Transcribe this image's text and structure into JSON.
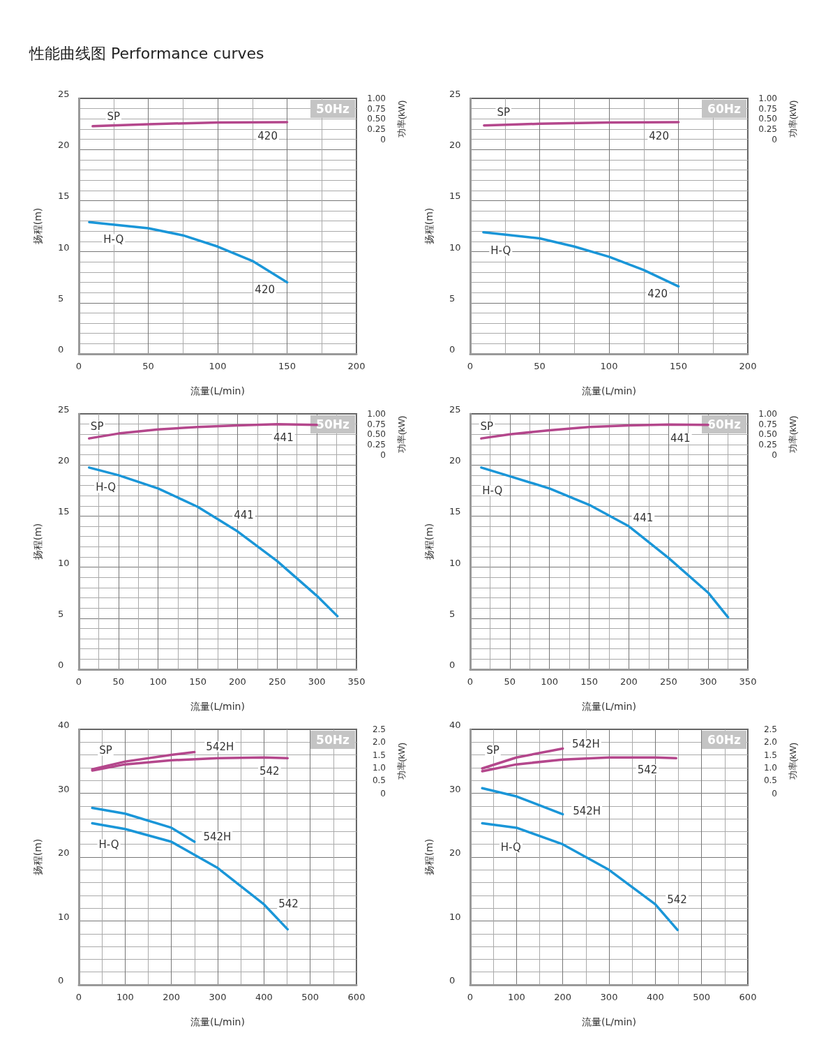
{
  "chart_data": [
    {
      "type": "line",
      "title": "性能曲线图 Performance curves",
      "xlabel": "流量(L/min)",
      "ylabel": "扬程(m)",
      "y2label": "功率(kW)",
      "xlim": [
        0,
        200
      ],
      "xticks": [
        0,
        50,
        100,
        150,
        200
      ],
      "ylim": [
        0,
        25
      ],
      "yticks": [
        0,
        5,
        10,
        15,
        20,
        25
      ],
      "y2lim": [
        -5.25,
        1
      ],
      "y2ticks": [
        0,
        0.25,
        {
          "value": 0.5,
          "label": "0.50"
        },
        0.75,
        {
          "value": 1,
          "label": "1.00"
        }
      ],
      "grid": true,
      "series": [
        {
          "color": "#1a96d8",
          "x": [
            7.5,
            50,
            75,
            100,
            125,
            150
          ],
          "values": [
            12.9,
            12.3,
            11.6,
            10.5,
            9.1,
            7.0
          ]
        },
        {
          "axis": "y2",
          "color": "#b4478c",
          "x": [
            10,
            50,
            100,
            150
          ],
          "values": [
            0.32,
            0.37,
            0.41,
            0.42
          ]
        }
      ],
      "annotations": [
        "50Hz",
        {
          "text": "SP",
          "x": 25,
          "y": 23.2
        },
        {
          "text": "H-Q",
          "x": 25,
          "y": 11.2
        },
        {
          "text": "420",
          "x": 136,
          "y": 21.3
        },
        {
          "text": "420",
          "x": 134,
          "y": 6.3
        }
      ]
    },
    {
      "type": "line",
      "xlabel": "流量(L/min)",
      "ylabel": "扬程(m)",
      "y2label": "功率(kW)",
      "xlim": [
        0,
        200
      ],
      "xticks": [
        0,
        50,
        100,
        150,
        200
      ],
      "ylim": [
        0,
        25
      ],
      "yticks": [
        0,
        5,
        10,
        15,
        20,
        25
      ],
      "y2lim": [
        -5.25,
        1
      ],
      "y2ticks": [
        0,
        0.25,
        {
          "value": 0.5,
          "label": "0.50"
        },
        0.75,
        {
          "value": 1,
          "label": "1.00"
        }
      ],
      "grid": true,
      "series": [
        {
          "color": "#1a96d8",
          "x": [
            9.5,
            50,
            75,
            100,
            125,
            150
          ],
          "values": [
            11.9,
            11.3,
            10.5,
            9.5,
            8.2,
            6.6
          ]
        },
        {
          "axis": "y2",
          "color": "#b4478c",
          "x": [
            10,
            50,
            100,
            150
          ],
          "values": [
            0.34,
            0.38,
            0.41,
            0.42
          ]
        }
      ],
      "annotations": [
        "60Hz",
        {
          "text": "SP",
          "x": 24,
          "y": 23.6
        },
        {
          "text": "H-Q",
          "x": 22,
          "y": 10.1
        },
        {
          "text": "420",
          "x": 136,
          "y": 21.3
        },
        {
          "text": "420",
          "x": 135,
          "y": 5.9
        }
      ]
    },
    {
      "type": "line",
      "xlabel": "流量(L/min)",
      "ylabel": "扬程(m)",
      "y2label": "功率(kW)",
      "xlim": [
        0,
        350
      ],
      "xticks": [
        0,
        50,
        100,
        150,
        200,
        250,
        300,
        350
      ],
      "ylim": [
        0,
        25
      ],
      "yticks": [
        0,
        5,
        10,
        15,
        20,
        25
      ],
      "y2lim": [
        -5.25,
        1
      ],
      "y2ticks": [
        0,
        0.25,
        {
          "value": 0.5,
          "label": "0.50"
        },
        0.75,
        {
          "value": 1,
          "label": "1.00"
        }
      ],
      "grid": true,
      "series": [
        {
          "color": "#1a96d8",
          "x": [
            13,
            50,
            100,
            150,
            200,
            250,
            300,
            326
          ],
          "values": [
            19.75,
            19.0,
            17.7,
            15.9,
            13.5,
            10.6,
            7.2,
            5.2
          ]
        },
        {
          "axis": "y2",
          "color": "#b4478c",
          "x": [
            13,
            50,
            100,
            150,
            200,
            250,
            300
          ],
          "values": [
            0.4,
            0.52,
            0.62,
            0.68,
            0.72,
            0.75,
            0.73
          ]
        }
      ],
      "annotations": [
        "50Hz",
        {
          "text": "SP",
          "x": 23,
          "y": 23.8
        },
        {
          "text": "H-Q",
          "x": 34,
          "y": 17.8
        },
        {
          "text": "441",
          "x": 258,
          "y": 22.7
        },
        {
          "text": "441",
          "x": 208,
          "y": 15.1
        }
      ]
    },
    {
      "type": "line",
      "xlabel": "流量(L/min)",
      "ylabel": "扬程(m)",
      "y2label": "功率(kW)",
      "xlim": [
        0,
        350
      ],
      "xticks": [
        0,
        50,
        100,
        150,
        200,
        250,
        300,
        350
      ],
      "ylim": [
        0,
        25
      ],
      "yticks": [
        0,
        5,
        10,
        15,
        20,
        25
      ],
      "y2lim": [
        -5.25,
        1
      ],
      "y2ticks": [
        0,
        0.25,
        {
          "value": 0.5,
          "label": "0.50"
        },
        0.75,
        {
          "value": 1,
          "label": "1.00"
        }
      ],
      "grid": true,
      "series": [
        {
          "color": "#1a96d8",
          "x": [
            14,
            50,
            100,
            150,
            200,
            250,
            300,
            325
          ],
          "values": [
            19.75,
            18.9,
            17.7,
            16.1,
            14.0,
            10.9,
            7.5,
            5.1
          ]
        },
        {
          "axis": "y2",
          "color": "#b4478c",
          "x": [
            14,
            50,
            100,
            150,
            200,
            250,
            300
          ],
          "values": [
            0.4,
            0.5,
            0.6,
            0.68,
            0.72,
            0.74,
            0.73
          ]
        }
      ],
      "annotations": [
        "60Hz",
        {
          "text": "SP",
          "x": 21,
          "y": 23.8
        },
        {
          "text": "H-Q",
          "x": 28,
          "y": 17.5
        },
        {
          "text": "441",
          "x": 265,
          "y": 22.6
        },
        {
          "text": "441",
          "x": 218,
          "y": 14.8
        }
      ]
    },
    {
      "type": "line",
      "xlabel": "流量(L/min)",
      "ylabel": "扬程(m)",
      "y2label": "功率(kW)",
      "xlim": [
        0,
        600
      ],
      "xticks": [
        0,
        100,
        200,
        300,
        400,
        500,
        600
      ],
      "ylim": [
        0,
        40
      ],
      "yticks": [
        0,
        10,
        20,
        30,
        40
      ],
      "y2lim": [
        -7.5,
        2.5
      ],
      "y2ticks": [
        0,
        0.5,
        {
          "value": 1,
          "label": "1.0"
        },
        1.5,
        {
          "value": 2,
          "label": "2.0"
        },
        2.5
      ],
      "grid": true,
      "series": [
        {
          "color": "#1a96d8",
          "x": [
            29,
            100,
            200,
            300,
            400,
            451
          ],
          "values": [
            25.3,
            24.4,
            22.4,
            18.3,
            12.6,
            8.7
          ]
        },
        {
          "color": "#1a96d8",
          "x": [
            29,
            100,
            200,
            250
          ],
          "values": [
            27.7,
            26.8,
            24.6,
            22.4
          ]
        },
        {
          "axis": "y2",
          "color": "#b4478c",
          "x": [
            29,
            100,
            200,
            300,
            400,
            451
          ],
          "values": [
            0.89,
            1.13,
            1.29,
            1.37,
            1.4,
            1.37
          ]
        },
        {
          "axis": "y2",
          "color": "#b4478c",
          "x": [
            29,
            100,
            200,
            250
          ],
          "values": [
            0.94,
            1.24,
            1.5,
            1.61
          ]
        }
      ],
      "annotations": [
        "50Hz",
        {
          "text": "SP",
          "x": 58,
          "y": 36.7
        },
        {
          "text": "H-Q",
          "x": 65,
          "y": 22.0
        },
        {
          "text": "542H",
          "x": 305,
          "y": 37.3
        },
        {
          "text": "542",
          "x": 412,
          "y": 33.4
        },
        {
          "text": "542H",
          "x": 299,
          "y": 23.2
        },
        {
          "text": "542",
          "x": 453,
          "y": 12.7
        }
      ]
    },
    {
      "type": "line",
      "xlabel": "流量(L/min)",
      "ylabel": "扬程(m)",
      "y2label": "功率(kW)",
      "xlim": [
        0,
        600
      ],
      "xticks": [
        0,
        100,
        200,
        300,
        400,
        500,
        600
      ],
      "ylim": [
        0,
        40
      ],
      "yticks": [
        0,
        10,
        20,
        30,
        40
      ],
      "y2lim": [
        -7.5,
        2.5
      ],
      "y2ticks": [
        0,
        0.5,
        {
          "value": 1,
          "label": "1.0"
        },
        1.5,
        {
          "value": 2,
          "label": "2.0"
        },
        2.5
      ],
      "grid": true,
      "series": [
        {
          "color": "#1a96d8",
          "x": [
            26,
            100,
            200,
            300,
            400,
            448
          ],
          "values": [
            25.3,
            24.6,
            22.0,
            18.0,
            12.6,
            8.6
          ]
        },
        {
          "color": "#1a96d8",
          "x": [
            26,
            100,
            200
          ],
          "values": [
            30.8,
            29.5,
            26.7
          ]
        },
        {
          "axis": "y2",
          "color": "#b4478c",
          "x": [
            26,
            100,
            200,
            300,
            400,
            445
          ],
          "values": [
            0.86,
            1.13,
            1.32,
            1.4,
            1.4,
            1.37
          ]
        },
        {
          "axis": "y2",
          "color": "#b4478c",
          "x": [
            26,
            100,
            200
          ],
          "values": [
            0.97,
            1.4,
            1.75
          ]
        }
      ],
      "annotations": [
        "60Hz",
        {
          "text": "SP",
          "x": 49,
          "y": 36.7
        },
        {
          "text": "H-Q",
          "x": 88,
          "y": 21.5
        },
        {
          "text": "542H",
          "x": 250,
          "y": 37.7
        },
        {
          "text": "542",
          "x": 383,
          "y": 33.7
        },
        {
          "text": "542H",
          "x": 252,
          "y": 27.2
        },
        {
          "text": "542",
          "x": 447,
          "y": 13.3
        }
      ]
    }
  ]
}
